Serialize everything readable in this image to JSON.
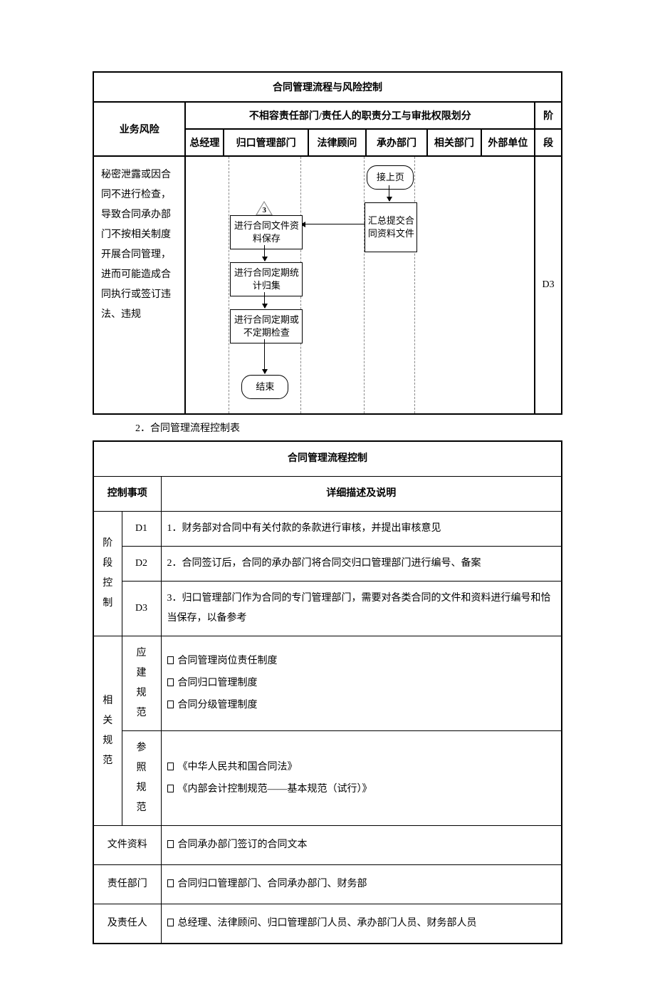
{
  "table1": {
    "title": "合同管理流程与风险控制",
    "risk_header": "业务风险",
    "resp_header": "不相容责任部门/责任人的职责分工与审批权限划分",
    "stage_header_top": "阶",
    "stage_header_bottom": "段",
    "cols": [
      "总经理",
      "归口管理部门",
      "法律顾问",
      "承办部门",
      "相关部门",
      "外部单位"
    ],
    "risk_text": "秘密泄露或因合同不进行检查，导致合同承办部门不按相关制度开展合同管理，进而可能造成合同执行或签订违法、违规",
    "stage_value": "D3",
    "flow": {
      "triangle_label": "3",
      "n1": "进行合同文件资料保存",
      "n2": "进行合同定期统计归集",
      "n3": "进行合同定期或不定期检查",
      "n4": "结束",
      "r1": "接上页",
      "r2": "汇总提交合同资料文件"
    }
  },
  "section2": "2．合同管理流程控制表",
  "table2": {
    "title": "合同管理流程控制",
    "h_ctrl": "控制事项",
    "h_desc": "详细描述及说明",
    "stage_label": "阶段控制",
    "d1": "D1",
    "d1_text": "1．财务部对合同中有关付款的条款进行审核，并提出审核意见",
    "d2": "D2",
    "d2_text": "2．合同签订后，合同的承办部门将合同交归口管理部门进行编号、备案",
    "d3": "D3",
    "d3_text": "3．归口管理部门作为合同的专门管理部门，需要对各类合同的文件和资料进行编号和恰当保存，以备参考",
    "rel_label": "相关规范",
    "yj_label": "应建规范",
    "yj_items": [
      "合同管理岗位责任制度",
      "合同归口管理制度",
      "合同分级管理制度"
    ],
    "cz_label": "参照规范",
    "cz_items": [
      "《中华人民共和国合同法》",
      "《内部会计控制规范——基本规范（试行）》"
    ],
    "file_label": "文件资料",
    "file_items": [
      "合同承办部门签订的合同文本"
    ],
    "dept_label": "责任部门",
    "dept_items": [
      "合同归口管理部门、合同承办部门、财务部"
    ],
    "person_label": "及责任人",
    "person_items": [
      "总经理、法律顾问、归口管理部门人员、承办部门人员、财务部人员"
    ]
  }
}
